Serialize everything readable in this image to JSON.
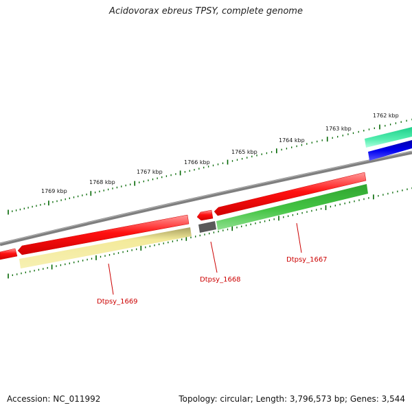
{
  "title": "Acidovorax ebreus TPSY, complete genome",
  "footer": {
    "accession": "Accession: NC_011992",
    "topology": "Topology: circular; Length: 3,796,573 bp; Genes: 3,544"
  },
  "scale": {
    "unit": "kbp",
    "labels": [
      "1762 kbp",
      "1763 kbp",
      "1764 kbp",
      "1765 kbp",
      "1766 kbp",
      "1767 kbp",
      "1768 kbp",
      "1769 kbp"
    ]
  },
  "genes": [
    {
      "label": "Dtpsy_1667",
      "color": "#ff0000",
      "strand": "minus"
    },
    {
      "label": "Dtpsy_1668",
      "color": "#ff0000",
      "strand": "minus"
    },
    {
      "label": "Dtpsy_1669",
      "color": "#ff0000",
      "strand": "minus"
    }
  ],
  "colors": {
    "backbone": "#808080",
    "cog_green": "#33bb33",
    "cog_yellow": "#f0e68c",
    "cog_teal": "#33dd99",
    "cog_blue": "#0000ee",
    "cog_gray": "#555555",
    "tick": "#006600"
  }
}
